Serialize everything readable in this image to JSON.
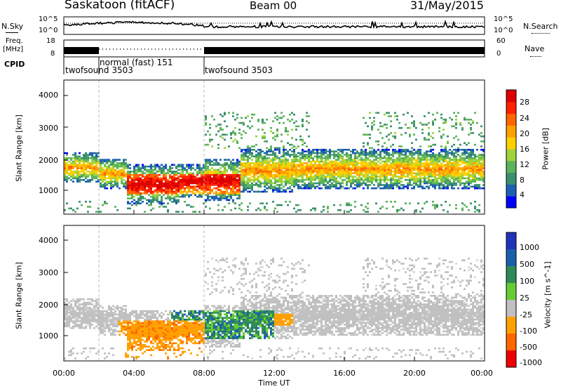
{
  "header": {
    "station": "Saskatoon (fitACF)",
    "beam": "Beam 00",
    "date": "31/May/2015"
  },
  "noise_panel": {
    "left_label": "N.Sky",
    "left_ticks": [
      "10^5",
      "10^0"
    ],
    "right_ticks": [
      "10^5",
      "10^0"
    ],
    "right_label": "N.Search"
  },
  "freq_panel": {
    "left_label_1": "Freq.",
    "left_label_2": "[MHz]",
    "left_ticks": [
      "18",
      "8"
    ],
    "right_ticks": [
      "60",
      "0"
    ],
    "right_label": "Nave"
  },
  "cpid_panel": {
    "label": "CPID",
    "segments": [
      {
        "name": "twofsound 3503",
        "start": 0,
        "end": 2
      },
      {
        "name": "normal (fast) 151",
        "start": 2,
        "end": 8
      },
      {
        "name": "twofsound 3503",
        "start": 8,
        "end": 24
      }
    ]
  },
  "x_axis": {
    "label": "Time UT",
    "ticks": [
      "00:00",
      "04:00",
      "08:00",
      "12:00",
      "16:00",
      "20:00",
      "00:00"
    ],
    "range_hours": [
      0,
      24
    ]
  },
  "chart_data": [
    {
      "type": "heatmap",
      "quantity": "Power",
      "ylabel": "Slant Range [km]",
      "yticks": [
        "4000",
        "3000",
        "2000",
        "1000"
      ],
      "ylim": [
        200,
        4600
      ],
      "colorbar": {
        "label": "Power [dB]",
        "ticks": [
          "28",
          "24",
          "20",
          "16",
          "12",
          "8",
          "4"
        ],
        "range": [
          0,
          32
        ],
        "colors": [
          "#0000ff",
          "#1c5fb4",
          "#3a8f6e",
          "#5cb35c",
          "#9ed43a",
          "#ffd000",
          "#ffa000",
          "#ff6600",
          "#ff2200",
          "#dd0000"
        ]
      }
    },
    {
      "type": "heatmap",
      "quantity": "Velocity",
      "ylabel": "Slant Range [km]",
      "yticks": [
        "4000",
        "3000",
        "2000",
        "1000"
      ],
      "ylim": [
        200,
        4600
      ],
      "colorbar": {
        "label": "Velocity [m s^-1]",
        "ticks": [
          "1000",
          "500",
          "100",
          "25",
          "-25",
          "-100",
          "-500",
          "-1000"
        ],
        "colors": [
          "#2233bb",
          "#1a5faa",
          "#2e8b57",
          "#66cc33",
          "#c0c0c0",
          "#ffa000",
          "#ff6600",
          "#ee0000"
        ]
      }
    }
  ]
}
